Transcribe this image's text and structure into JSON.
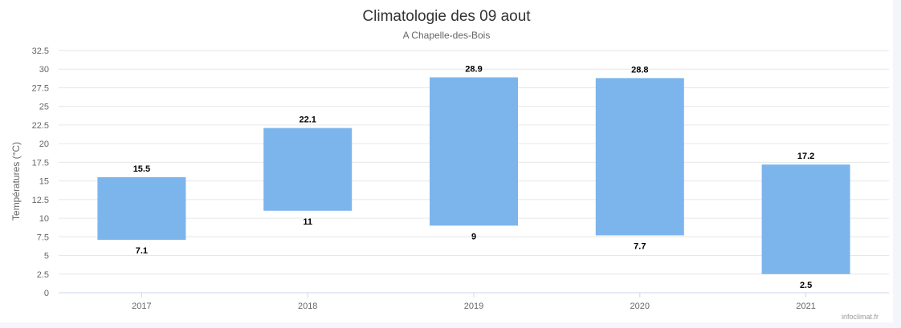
{
  "chart_data": {
    "type": "bar",
    "subtype": "range",
    "title": "Climatologie des 09 aout",
    "subtitle": "A Chapelle-des-Bois",
    "ylabel": "Températures (°C)",
    "xlabel": "",
    "categories": [
      "2017",
      "2018",
      "2019",
      "2020",
      "2021"
    ],
    "series": [
      {
        "low": [
          7.1,
          11,
          9,
          7.7,
          2.5
        ],
        "high": [
          15.5,
          22.1,
          28.9,
          28.8,
          17.2
        ],
        "color": "#7cb5ec"
      }
    ],
    "ylim": [
      0,
      32.5
    ],
    "yticks": [
      "0",
      "2.5",
      "5",
      "7.5",
      "10",
      "12.5",
      "15",
      "17.5",
      "20",
      "22.5",
      "25",
      "27.5",
      "30",
      "32.5"
    ],
    "grid": true,
    "legend": "none"
  },
  "credits": "infoclimat.fr",
  "colors": {
    "bar": "#7cb5ec",
    "grid": "#e6e6e6",
    "axis": "#ccd6eb"
  }
}
